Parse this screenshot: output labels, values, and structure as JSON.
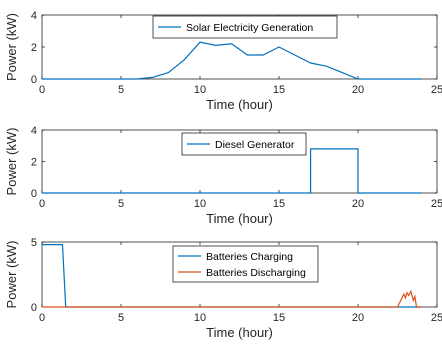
{
  "chart_data": [
    {
      "type": "line",
      "xlabel": "Time (hour)",
      "ylabel": "Power (kW)",
      "xlim": [
        0,
        25
      ],
      "ylim": [
        0,
        4
      ],
      "xticks": [
        0,
        5,
        10,
        15,
        20,
        25
      ],
      "yticks": [
        0,
        2,
        4
      ],
      "grid": false,
      "legend_position": "top-center",
      "series": [
        {
          "name": "Solar Electricity Generation",
          "color": "#0072BD",
          "x": [
            0,
            6,
            7,
            8,
            9,
            10,
            11,
            12,
            13,
            14,
            15,
            16,
            17,
            18,
            19,
            20,
            24
          ],
          "y": [
            0,
            0,
            0.1,
            0.4,
            1.2,
            2.3,
            2.1,
            2.2,
            1.5,
            1.5,
            2.0,
            1.5,
            1.0,
            0.8,
            0.4,
            0,
            0
          ]
        }
      ]
    },
    {
      "type": "line",
      "xlabel": "Time (hour)",
      "ylabel": "Power (kW)",
      "xlim": [
        0,
        25
      ],
      "ylim": [
        0,
        4
      ],
      "xticks": [
        0,
        5,
        10,
        15,
        20,
        25
      ],
      "yticks": [
        0,
        2,
        4
      ],
      "grid": false,
      "legend_position": "top-center",
      "series": [
        {
          "name": "Diesel Generator",
          "color": "#0072BD",
          "x": [
            0,
            17,
            17,
            20,
            20,
            24
          ],
          "y": [
            0,
            0,
            2.8,
            2.8,
            0,
            0
          ]
        }
      ]
    },
    {
      "type": "line",
      "xlabel": "Time (hour)",
      "ylabel": "Power (kW)",
      "xlim": [
        0,
        25
      ],
      "ylim": [
        0,
        5
      ],
      "xticks": [
        0,
        5,
        10,
        15,
        20,
        25
      ],
      "yticks": [
        0,
        5
      ],
      "grid": false,
      "legend_position": "top-center",
      "series": [
        {
          "name": "Batteries Charging",
          "color": "#0072BD",
          "x": [
            0,
            1.3,
            1.5,
            24
          ],
          "y": [
            4.8,
            4.8,
            0,
            0
          ]
        },
        {
          "name": "Batteries Discharging",
          "color": "#D95319",
          "x": [
            0,
            22.5,
            22.7,
            22.9,
            23.0,
            23.1,
            23.2,
            23.35,
            23.5,
            23.6,
            23.7,
            24
          ],
          "y": [
            0,
            0,
            0.5,
            1.0,
            0.7,
            1.1,
            0.9,
            1.2,
            0.5,
            0.8,
            0,
            0
          ]
        }
      ]
    }
  ]
}
